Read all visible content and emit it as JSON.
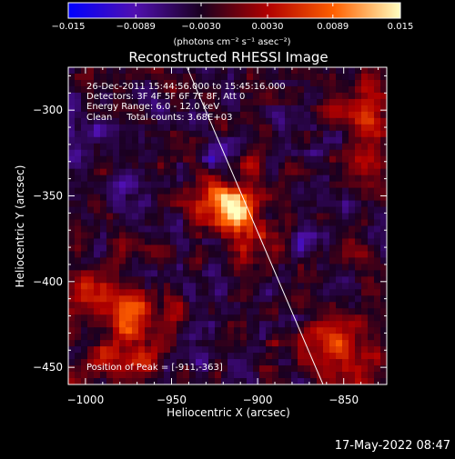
{
  "chart_data": {
    "type": "heatmap",
    "title": "Reconstructed RHESSI Image",
    "xlabel": "Heliocentric X (arcsec)",
    "ylabel": "Heliocentric Y (arcsec)",
    "xlim": [
      -1010,
      -825
    ],
    "ylim": [
      -460,
      -275
    ],
    "x_ticks": [
      -1000,
      -950,
      -900,
      -850
    ],
    "y_ticks": [
      -450,
      -400,
      -350,
      -300
    ],
    "x_tick_labels": [
      "−1000",
      "−950",
      "−900",
      "−850"
    ],
    "y_tick_labels": [
      "−450",
      "−400",
      "−350",
      "−300"
    ],
    "colorbar": {
      "range": [
        -0.015,
        0.015
      ],
      "ticks": [
        -0.015,
        -0.0089,
        -0.003,
        0.003,
        0.0089,
        0.015
      ],
      "tick_labels": [
        "−0.015",
        "−0.0089",
        "−0.0030",
        "0.0030",
        "0.0089",
        "0.015"
      ],
      "unit_label": "(photons cm⁻² s⁻¹ asec⁻²)",
      "colors": [
        "#0000ff",
        "#5010b0",
        "#1a0020",
        "#b00000",
        "#ff6000",
        "#ffffc0"
      ]
    },
    "annotations": [
      "26-Dec-2011 15:44:56.000 to 15:45:16.000",
      "Detectors: 3F 4F 5F 6F 7F 8F, Att 0",
      "Energy Range: 6.0 - 12.0 keV",
      "Clean     Total counts: 3.68E+03"
    ],
    "peak_label": "Position of Peak = [-911,-363]",
    "peak": [
      -911,
      -363
    ],
    "limb_line": [
      [
        -941,
        -275
      ],
      [
        -862,
        -460
      ]
    ],
    "sources": [
      {
        "x": -912,
        "y": -360,
        "amp": 0.016,
        "sx": 9,
        "sy": 9
      },
      {
        "x": -927,
        "y": -351,
        "amp": 0.0085,
        "sx": 13,
        "sy": 8
      },
      {
        "x": -905,
        "y": -333,
        "amp": 0.0055,
        "sx": 6,
        "sy": 8
      },
      {
        "x": -897,
        "y": -372,
        "amp": 0.0045,
        "sx": 8,
        "sy": 6
      },
      {
        "x": -905,
        "y": -385,
        "amp": 0.0042,
        "sx": 9,
        "sy": 5
      },
      {
        "x": -988,
        "y": -412,
        "amp": 0.008,
        "sx": 16,
        "sy": 13
      },
      {
        "x": -968,
        "y": -427,
        "amp": 0.006,
        "sx": 11,
        "sy": 10
      },
      {
        "x": -975,
        "y": -448,
        "amp": 0.006,
        "sx": 16,
        "sy": 10
      },
      {
        "x": -852,
        "y": -438,
        "amp": 0.0085,
        "sx": 15,
        "sy": 13
      },
      {
        "x": -838,
        "y": -460,
        "amp": 0.0065,
        "sx": 10,
        "sy": 8
      },
      {
        "x": -832,
        "y": -298,
        "amp": 0.008,
        "sx": 10,
        "sy": 12
      },
      {
        "x": -835,
        "y": -335,
        "amp": 0.0055,
        "sx": 9,
        "sy": 14
      },
      {
        "x": -852,
        "y": -300,
        "amp": 0.0045,
        "sx": 9,
        "sy": 9
      },
      {
        "x": -1000,
        "y": -287,
        "amp": 0.004,
        "sx": 9,
        "sy": 9
      },
      {
        "x": -945,
        "y": -415,
        "amp": 0.003,
        "sx": 7,
        "sy": 7
      },
      {
        "x": -900,
        "y": -285,
        "amp": 0.003,
        "sx": 7,
        "sy": 6
      }
    ]
  },
  "footer": {
    "timestamp": "17-May-2022 08:47"
  }
}
